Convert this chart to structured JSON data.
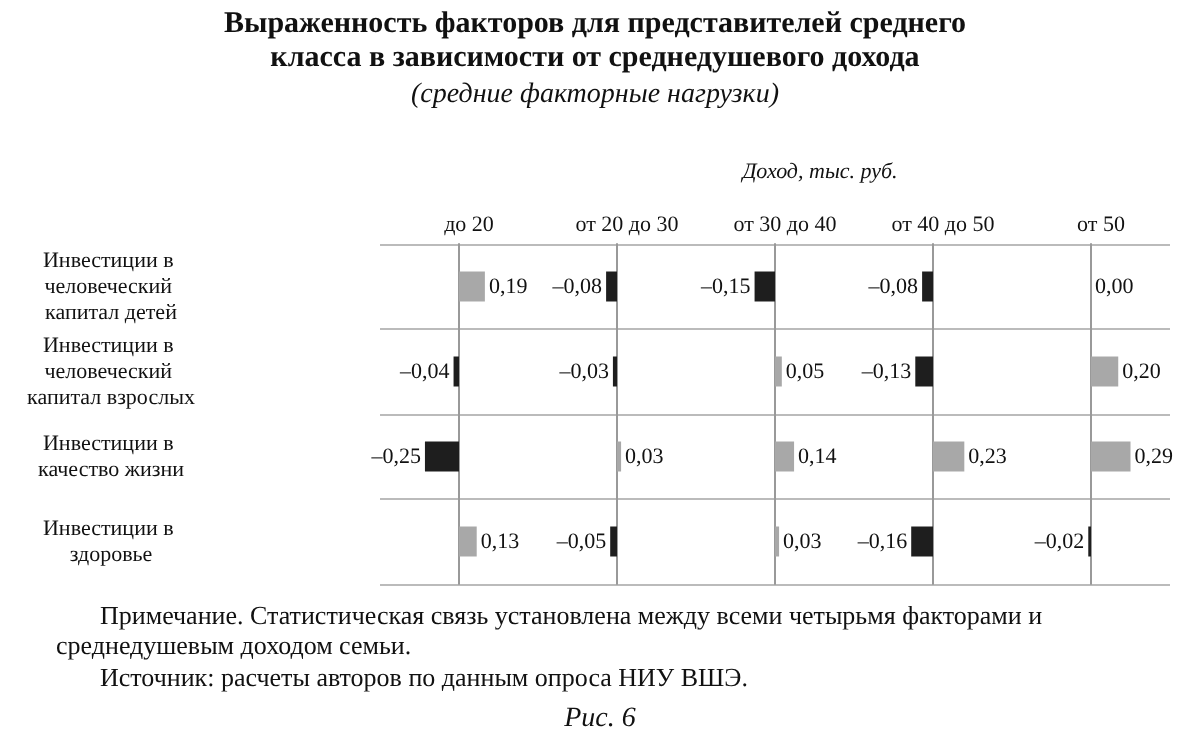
{
  "chart_data": [
    {
      "type": "bar",
      "orientation": "horizontal",
      "title": "до 20",
      "grid": "y",
      "tick_labels": "y",
      "categories": [
        "Инвестиции в человеческий капитал детей",
        "Инвестиции в человеческий капитал взрослых",
        "Инвестиции в качество жизни",
        "Инвестиции в здоровье"
      ],
      "values": [
        0.19,
        -0.04,
        -0.25,
        0.13
      ],
      "colors": [
        "#a8a8a8",
        "#1e1e1e",
        "#1e1e1e",
        "#a8a8a8"
      ],
      "value_labels": [
        "0,19",
        "–0,04",
        "–0,25",
        "0,13"
      ],
      "annotations": [
        "Выраженность факторов для представителей среднего класса в зависимости от среднедушевого дохода",
        "(средние факторные нагрузки)",
        "Доход, тыс. руб.",
        "Примечание. Статистическая связь установлена между всеми четырьмя факторами и среднедушевым доходом семьи.",
        "Источник: расчеты авторов по данным опроса НИУ ВШЭ.",
        "Рис. 6"
      ]
    },
    {
      "type": "bar",
      "orientation": "horizontal",
      "title": "от 20 до 30",
      "grid": "y",
      "tick_labels": false,
      "categories": [
        "Инвестиции в человеческий капитал детей",
        "Инвестиции в человеческий капитал взрослых",
        "Инвестиции в качество жизни",
        "Инвестиции в здоровье"
      ],
      "values": [
        -0.08,
        -0.03,
        0.03,
        -0.05
      ],
      "colors": [
        "#1e1e1e",
        "#1e1e1e",
        "#a8a8a8",
        "#1e1e1e"
      ],
      "value_labels": [
        "–0,08",
        "–0,03",
        "0,03",
        "–0,05"
      ]
    },
    {
      "type": "bar",
      "orientation": "horizontal",
      "title": "от 30 до 40",
      "grid": "y",
      "tick_labels": false,
      "categories": [
        "Инвестиции в человеческий капитал детей",
        "Инвестиции в человеческий капитал взрослых",
        "Инвестиции в качество жизни",
        "Инвестиции в здоровье"
      ],
      "values": [
        -0.15,
        0.05,
        0.14,
        0.03
      ],
      "colors": [
        "#1e1e1e",
        "#a8a8a8",
        "#a8a8a8",
        "#a8a8a8"
      ],
      "value_labels": [
        "–0,15",
        "0,05",
        "0,14",
        "0,03"
      ]
    },
    {
      "type": "bar",
      "orientation": "horizontal",
      "title": "от 40 до 50",
      "grid": "y",
      "tick_labels": false,
      "categories": [
        "Инвестиции в человеческий капитал детей",
        "Инвестиции в человеческий капитал взрослых",
        "Инвестиции в качество жизни",
        "Инвестиции в здоровье"
      ],
      "values": [
        -0.08,
        -0.13,
        0.23,
        -0.16
      ],
      "colors": [
        "#1e1e1e",
        "#1e1e1e",
        "#a8a8a8",
        "#1e1e1e"
      ],
      "value_labels": [
        "–0,08",
        "–0,13",
        "0,23",
        "–0,16"
      ]
    },
    {
      "type": "bar",
      "orientation": "horizontal",
      "title": "от 50",
      "grid": "y",
      "tick_labels": false,
      "categories": [
        "Инвестиции в человеческий капитал детей",
        "Инвестиции в человеческий капитал взрослых",
        "Инвестиции в качество жизни",
        "Инвестиции в здоровье"
      ],
      "values": [
        0.0,
        0.2,
        0.29,
        -0.02
      ],
      "colors": [
        "#a8a8a8",
        "#a8a8a8",
        "#a8a8a8",
        "#1e1e1e"
      ],
      "value_labels": [
        "0,00",
        "0,20",
        "0,29",
        "–0,02"
      ]
    }
  ]
}
